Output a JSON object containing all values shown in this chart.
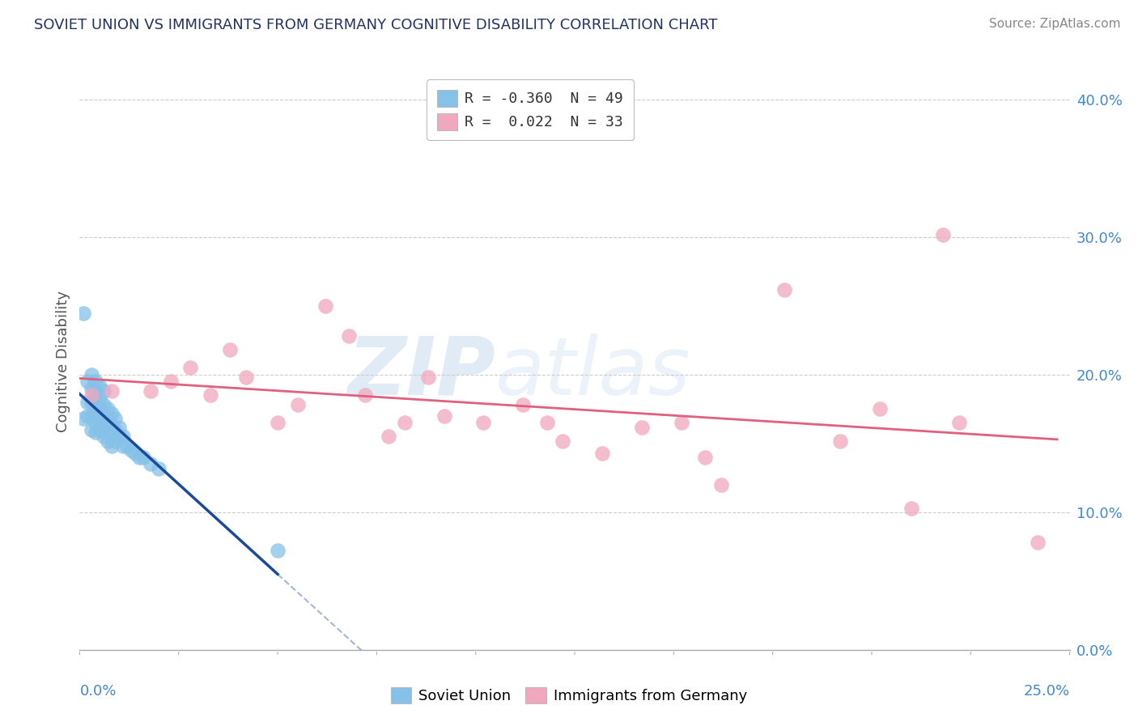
{
  "title": "SOVIET UNION VS IMMIGRANTS FROM GERMANY COGNITIVE DISABILITY CORRELATION CHART",
  "source": "Source: ZipAtlas.com",
  "ylabel": "Cognitive Disability",
  "xlim": [
    0.0,
    0.25
  ],
  "ylim": [
    0.0,
    0.42
  ],
  "yticks": [
    0.0,
    0.1,
    0.2,
    0.3,
    0.4
  ],
  "ytick_labels": [
    "0.0%",
    "10.0%",
    "20.0%",
    "30.0%",
    "40.0%"
  ],
  "xtick_left_label": "0.0%",
  "xtick_right_label": "25.0%",
  "legend_r1_label": "R = -0.360  N = 49",
  "legend_r2_label": "R =  0.022  N = 33",
  "soviet_color": "#85C1E8",
  "germany_color": "#F1A7BE",
  "soviet_line_color": "#1A4A9A",
  "germany_line_color": "#E06080",
  "background_color": "#FFFFFF",
  "soviet_x": [
    0.001,
    0.002,
    0.002,
    0.002,
    0.003,
    0.003,
    0.003,
    0.003,
    0.003,
    0.004,
    0.004,
    0.004,
    0.004,
    0.004,
    0.004,
    0.005,
    0.005,
    0.005,
    0.005,
    0.005,
    0.006,
    0.006,
    0.006,
    0.006,
    0.006,
    0.007,
    0.007,
    0.007,
    0.007,
    0.008,
    0.008,
    0.008,
    0.008,
    0.009,
    0.009,
    0.009,
    0.01,
    0.01,
    0.011,
    0.011,
    0.012,
    0.013,
    0.014,
    0.015,
    0.016,
    0.018,
    0.02,
    0.05,
    0.001
  ],
  "soviet_y": [
    0.245,
    0.195,
    0.18,
    0.17,
    0.2,
    0.19,
    0.18,
    0.17,
    0.16,
    0.195,
    0.188,
    0.18,
    0.172,
    0.165,
    0.158,
    0.192,
    0.183,
    0.175,
    0.168,
    0.16,
    0.188,
    0.178,
    0.168,
    0.162,
    0.155,
    0.175,
    0.168,
    0.16,
    0.152,
    0.172,
    0.163,
    0.155,
    0.148,
    0.168,
    0.16,
    0.152,
    0.162,
    0.155,
    0.155,
    0.148,
    0.148,
    0.145,
    0.143,
    0.14,
    0.14,
    0.135,
    0.132,
    0.072,
    0.168
  ],
  "germany_x": [
    0.003,
    0.008,
    0.018,
    0.023,
    0.028,
    0.033,
    0.038,
    0.042,
    0.05,
    0.055,
    0.062,
    0.068,
    0.072,
    0.078,
    0.082,
    0.088,
    0.092,
    0.102,
    0.112,
    0.118,
    0.122,
    0.132,
    0.142,
    0.152,
    0.158,
    0.162,
    0.178,
    0.192,
    0.202,
    0.21,
    0.218,
    0.222,
    0.242
  ],
  "germany_y": [
    0.185,
    0.188,
    0.188,
    0.195,
    0.205,
    0.185,
    0.218,
    0.198,
    0.165,
    0.178,
    0.25,
    0.228,
    0.185,
    0.155,
    0.165,
    0.198,
    0.17,
    0.165,
    0.178,
    0.165,
    0.152,
    0.143,
    0.162,
    0.165,
    0.14,
    0.12,
    0.262,
    0.152,
    0.175,
    0.103,
    0.302,
    0.165,
    0.078
  ]
}
